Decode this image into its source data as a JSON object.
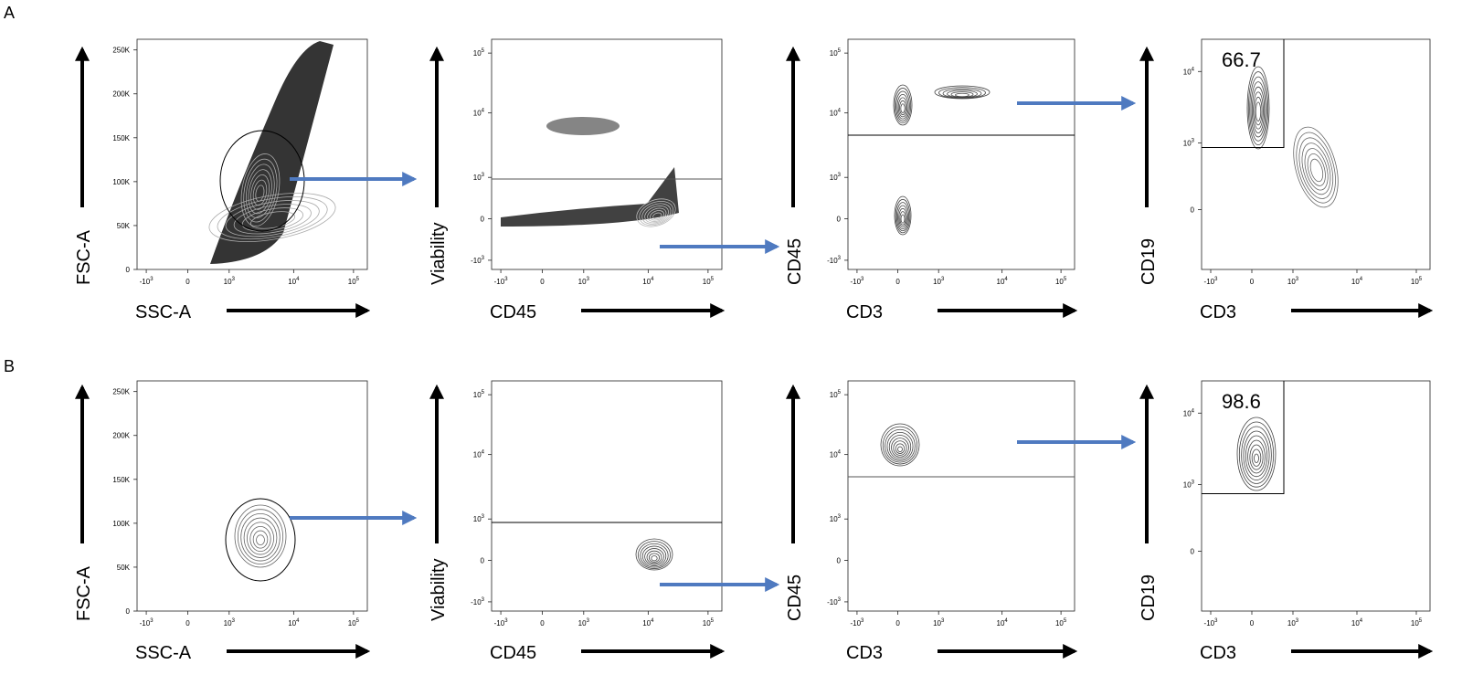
{
  "chart_data": {
    "type": "contour",
    "title": "",
    "rows": [
      {
        "label": "A",
        "panels": [
          {
            "xlabel": "SSC-A",
            "ylabel": "FSC-A",
            "x_scale": "biex",
            "y_scale": "linear",
            "x_ticks": [
              "-10^3",
              "0",
              "10^3",
              "10^4",
              "10^5"
            ],
            "y_ticks": [
              "0",
              "50K",
              "100K",
              "150K",
              "200K",
              "250K"
            ],
            "gate": {
              "type": "ellipse",
              "label": ""
            }
          },
          {
            "xlabel": "CD45",
            "ylabel": "Viability",
            "x_scale": "biex",
            "y_scale": "biex",
            "x_ticks": [
              "-10^3",
              "0",
              "10^3",
              "10^4",
              "10^5"
            ],
            "y_ticks": [
              "-10^3",
              "0",
              "10^3",
              "10^4",
              "10^5"
            ],
            "gate": {
              "type": "horizontal-line",
              "label": ""
            }
          },
          {
            "xlabel": "CD3",
            "ylabel": "CD45",
            "x_scale": "biex",
            "y_scale": "biex",
            "x_ticks": [
              "-10^3",
              "0",
              "10^3",
              "10^4",
              "10^5"
            ],
            "y_ticks": [
              "-10^3",
              "0",
              "10^3",
              "10^4",
              "10^5"
            ],
            "gate": {
              "type": "horizontal-line",
              "label": ""
            }
          },
          {
            "xlabel": "CD3",
            "ylabel": "CD19",
            "x_scale": "biex",
            "y_scale": "biex",
            "x_ticks": [
              "-10^3",
              "0",
              "10^3",
              "10^4",
              "10^5"
            ],
            "y_ticks": [
              "0",
              "10^3",
              "10^4"
            ],
            "gate": {
              "type": "rectangle",
              "label": "66.7"
            }
          }
        ]
      },
      {
        "label": "B",
        "panels": [
          {
            "xlabel": "SSC-A",
            "ylabel": "FSC-A",
            "x_scale": "biex",
            "y_scale": "linear",
            "x_ticks": [
              "-10^3",
              "0",
              "10^3",
              "10^4",
              "10^5"
            ],
            "y_ticks": [
              "0",
              "50K",
              "100K",
              "150K",
              "200K",
              "250K"
            ],
            "gate": {
              "type": "ellipse",
              "label": ""
            }
          },
          {
            "xlabel": "CD45",
            "ylabel": "Viability",
            "x_scale": "biex",
            "y_scale": "biex",
            "x_ticks": [
              "-10^3",
              "0",
              "10^3",
              "10^4",
              "10^5"
            ],
            "y_ticks": [
              "-10^3",
              "0",
              "10^3",
              "10^4",
              "10^5"
            ],
            "gate": {
              "type": "horizontal-line",
              "label": ""
            }
          },
          {
            "xlabel": "CD3",
            "ylabel": "CD45",
            "x_scale": "biex",
            "y_scale": "biex",
            "x_ticks": [
              "-10^3",
              "0",
              "10^3",
              "10^4",
              "10^5"
            ],
            "y_ticks": [
              "-10^3",
              "0",
              "10^3",
              "10^4",
              "10^5"
            ],
            "gate": {
              "type": "horizontal-line",
              "label": ""
            }
          },
          {
            "xlabel": "CD3",
            "ylabel": "CD19",
            "x_scale": "biex",
            "y_scale": "biex",
            "x_ticks": [
              "-10^3",
              "0",
              "10^3",
              "10^4",
              "10^5"
            ],
            "y_ticks": [
              "0",
              "10^3",
              "10^4"
            ],
            "gate": {
              "type": "rectangle",
              "label": "98.6"
            }
          }
        ]
      }
    ]
  },
  "colors": {
    "flow_arrow": "#4f7ac0",
    "axis_arrow": "#000000",
    "contour": "#555555"
  }
}
